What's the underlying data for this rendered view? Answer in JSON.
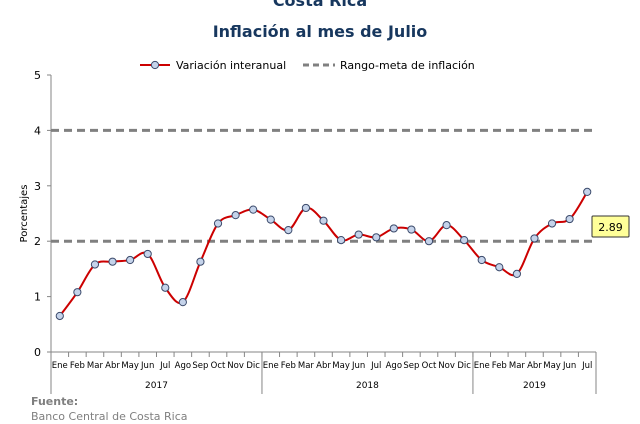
{
  "chart_data": {
    "type": "line",
    "title": "Costa Rica",
    "subtitle": "Inflación al mes de Julio",
    "ylabel": "Porcentajes",
    "xlabel": "",
    "ylim": [
      0,
      5
    ],
    "yticks": [
      0,
      1,
      2,
      3,
      4,
      5
    ],
    "grid": false,
    "legend_position": "top-center",
    "categories": [
      "Ene",
      "Feb",
      "Mar",
      "Abr",
      "May",
      "Jun",
      "Jul",
      "Ago",
      "Sep",
      "Oct",
      "Nov",
      "Dic",
      "Ene",
      "Feb",
      "Mar",
      "Abr",
      "May",
      "Jun",
      "Jul",
      "Ago",
      "Sep",
      "Oct",
      "Nov",
      "Dic",
      "Ene",
      "Feb",
      "Mar",
      "Abr",
      "May",
      "Jun",
      "Jul"
    ],
    "year_groups": [
      {
        "label": "2017",
        "count": 12
      },
      {
        "label": "2018",
        "count": 12
      },
      {
        "label": "2019",
        "count": 7
      }
    ],
    "series": [
      {
        "name": "Variación interanual",
        "color": "#cc0000",
        "marker_fill": "#c5d3ea",
        "values": [
          0.65,
          1.08,
          1.58,
          1.63,
          1.66,
          1.77,
          1.16,
          0.9,
          1.63,
          2.32,
          2.47,
          2.57,
          2.39,
          2.2,
          2.6,
          2.37,
          2.02,
          2.12,
          2.07,
          2.23,
          2.21,
          2.0,
          2.29,
          2.02,
          1.66,
          1.53,
          1.41,
          2.05,
          2.32,
          2.4,
          2.89
        ]
      },
      {
        "name": "Rango-meta de inflación",
        "color": "#808080",
        "style": "dashed",
        "bounds": [
          2,
          4
        ]
      }
    ],
    "annotation": {
      "label": "2.89",
      "background": "#ffff99"
    }
  },
  "source": {
    "label": "Fuente:",
    "text": "Banco Central de Costa Rica"
  }
}
